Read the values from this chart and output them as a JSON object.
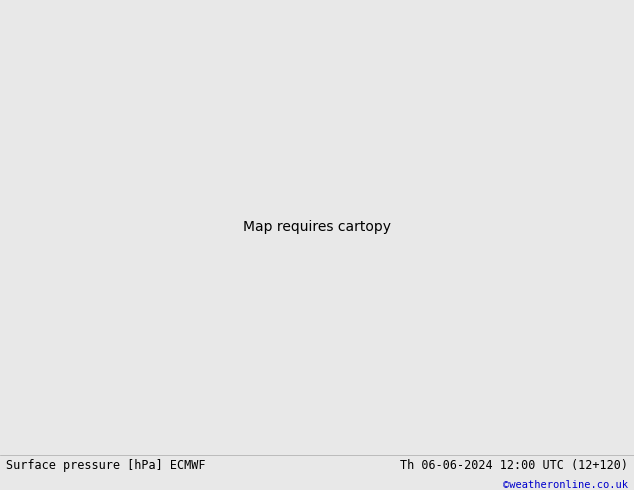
{
  "title_left": "Surface pressure [hPa] ECMWF",
  "title_right": "Th 06-06-2024 12:00 UTC (12+120)",
  "watermark": "©weatheronline.co.uk",
  "bottom_bar_color": "#e8e8e8",
  "watermark_color": "#0000cc",
  "ocean_color": "#d2d2d2",
  "land_color": "#b0d890",
  "gray_terrain_color": "#a0a0a0",
  "isobar_blue": "#0000cc",
  "isobar_black": "#000000",
  "isobar_red": "#cc0000",
  "lw": 0.9,
  "label_fontsize": 6.5
}
